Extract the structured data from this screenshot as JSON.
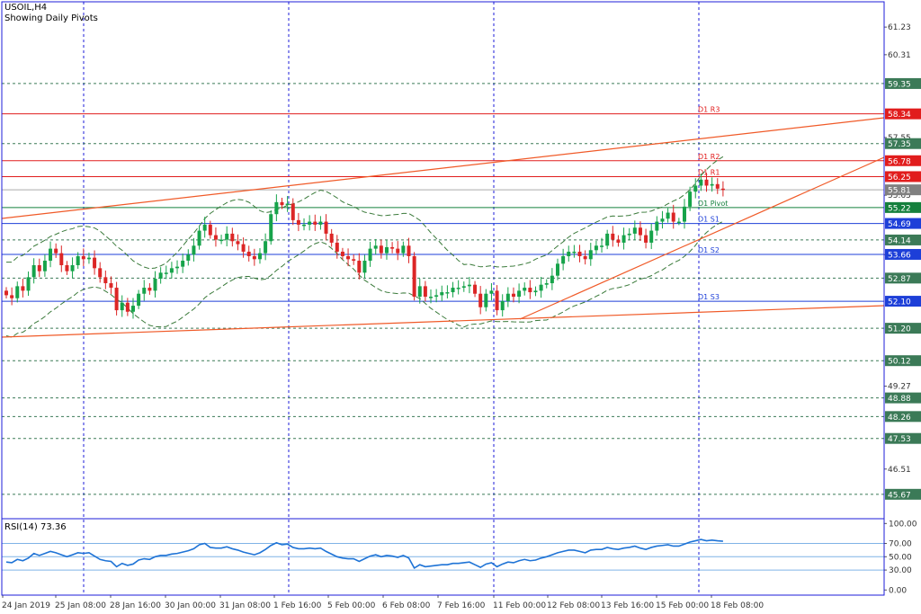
{
  "header": {
    "symbol": "USOIL,H4",
    "subtitle": "Showing Daily Pivots"
  },
  "rsi_panel": {
    "label": "RSI(14) 73.36",
    "ticks": [
      "100.00",
      "70.00",
      "50.00",
      "30.00",
      "0.00"
    ]
  },
  "colors": {
    "bull": "#16a34a",
    "bear": "#dc2626",
    "pivot_resistance": "#e11d1d",
    "pivot": "#15803d",
    "pivot_support": "#1d3fd8",
    "trendline": "#f05a28",
    "bands": "#3a7a3a",
    "rsi": "#1e73d6",
    "frame": "#1c1cd9"
  },
  "chart_data": {
    "type": "candlestick",
    "title": "USOIL,H4",
    "subtitle": "Showing Daily Pivots",
    "ylim": [
      45.0,
      62.0
    ],
    "y_ticks": [
      "61.23",
      "60.31",
      "57.55",
      "55.63",
      "53.65",
      "49.27",
      "46.51"
    ],
    "x_ticks": [
      "24 Jan 2019",
      "25 Jan 08:00",
      "28 Jan 16:00",
      "30 Jan 00:00",
      "31 Jan 08:00",
      "1 Feb 16:00",
      "5 Feb 00:00",
      "6 Feb 08:00",
      "7 Feb 16:00",
      "11 Feb 00:00",
      "12 Feb 08:00",
      "13 Feb 16:00",
      "15 Feb 00:00",
      "18 Feb 08:00"
    ],
    "price_labels": [
      {
        "value": "59.35",
        "color": "#3b7a57"
      },
      {
        "value": "58.34",
        "color": "#e11d1d"
      },
      {
        "value": "57.35",
        "color": "#3b7a57"
      },
      {
        "value": "56.78",
        "color": "#e11d1d"
      },
      {
        "value": "56.25",
        "color": "#e11d1d"
      },
      {
        "value": "55.81",
        "color": "#808080"
      },
      {
        "value": "55.22",
        "color": "#15803d"
      },
      {
        "value": "54.69",
        "color": "#1d3fd8"
      },
      {
        "value": "54.14",
        "color": "#3b7a57"
      },
      {
        "value": "53.66",
        "color": "#1d3fd8"
      },
      {
        "value": "52.87",
        "color": "#3b7a57"
      },
      {
        "value": "52.10",
        "color": "#1d3fd8"
      },
      {
        "value": "51.20",
        "color": "#3b7a57"
      },
      {
        "value": "50.12",
        "color": "#3b7a57"
      },
      {
        "value": "48.88",
        "color": "#3b7a57"
      },
      {
        "value": "48.26",
        "color": "#3b7a57"
      },
      {
        "value": "47.53",
        "color": "#3b7a57"
      },
      {
        "value": "45.67",
        "color": "#3b7a57"
      }
    ],
    "dashed_levels": [
      59.35,
      57.35,
      54.14,
      52.87,
      51.2,
      50.12,
      48.88,
      48.26,
      47.53,
      45.67
    ],
    "pivots": [
      {
        "label": "D1 R3",
        "value": 58.34,
        "kind": "resistance"
      },
      {
        "label": "D1 R2",
        "value": 56.78,
        "kind": "resistance"
      },
      {
        "label": "D1 R1",
        "value": 56.25,
        "kind": "resistance"
      },
      {
        "label": "D1 Pivot",
        "value": 55.22,
        "kind": "pivot"
      },
      {
        "label": "D1 S1",
        "value": 54.69,
        "kind": "support"
      },
      {
        "label": "D1 S2",
        "value": 53.66,
        "kind": "support"
      },
      {
        "label": "D1 S3",
        "value": 52.1,
        "kind": "support"
      }
    ],
    "current_price": 55.81,
    "candles_close": [
      52.3,
      52.2,
      52.6,
      52.45,
      52.9,
      53.3,
      53.1,
      53.45,
      53.85,
      53.7,
      53.3,
      53.1,
      53.3,
      53.6,
      53.5,
      53.55,
      53.2,
      52.9,
      52.7,
      52.55,
      51.8,
      52.05,
      51.75,
      51.95,
      52.35,
      52.55,
      52.45,
      52.85,
      53.05,
      53.05,
      53.2,
      53.25,
      53.45,
      53.65,
      53.95,
      54.45,
      54.65,
      54.3,
      54.15,
      54.15,
      54.35,
      54.1,
      54.0,
      53.75,
      53.6,
      53.5,
      53.7,
      54.1,
      55.0,
      55.4,
      55.3,
      55.35,
      54.8,
      54.65,
      54.65,
      54.75,
      54.65,
      54.75,
      54.35,
      54.05,
      53.75,
      53.6,
      53.5,
      53.45,
      53.05,
      53.45,
      53.85,
      53.95,
      53.7,
      53.9,
      53.85,
      53.7,
      53.95,
      53.6,
      52.25,
      52.6,
      52.25,
      52.25,
      52.3,
      52.4,
      52.4,
      52.55,
      52.55,
      52.6,
      52.65,
      52.35,
      51.9,
      52.35,
      52.45,
      51.8,
      52.1,
      52.35,
      52.25,
      52.45,
      52.55,
      52.4,
      52.45,
      52.65,
      52.7,
      52.95,
      53.35,
      53.6,
      53.75,
      53.75,
      53.6,
      53.5,
      53.8,
      53.95,
      53.95,
      54.35,
      54.15,
      54.05,
      54.3,
      54.35,
      54.55,
      54.3,
      54.05,
      54.45,
      54.75,
      54.85,
      55.05,
      54.75,
      54.75,
      55.25,
      55.75,
      55.95,
      56.15,
      55.95,
      56.0,
      55.85,
      55.81
    ],
    "rsi": {
      "name": "RSI(14)",
      "value": 73.36,
      "ylim": [
        0,
        100
      ],
      "levels": [
        70,
        50,
        30
      ],
      "values": [
        42,
        41,
        46,
        44,
        48,
        55,
        52,
        55,
        58,
        56,
        53,
        50,
        53,
        56,
        55,
        56,
        51,
        46,
        44,
        43,
        35,
        40,
        37,
        39,
        45,
        47,
        46,
        50,
        52,
        52,
        54,
        55,
        57,
        59,
        62,
        68,
        70,
        64,
        63,
        63,
        65,
        62,
        60,
        57,
        55,
        53,
        56,
        61,
        67,
        71,
        68,
        69,
        64,
        62,
        62,
        63,
        62,
        63,
        58,
        54,
        50,
        48,
        47,
        47,
        43,
        47,
        51,
        53,
        50,
        52,
        51,
        49,
        52,
        48,
        33,
        38,
        35,
        36,
        37,
        38,
        38,
        40,
        40,
        41,
        42,
        38,
        34,
        39,
        41,
        35,
        39,
        42,
        41,
        44,
        46,
        44,
        45,
        48,
        50,
        53,
        56,
        58,
        60,
        60,
        58,
        56,
        60,
        61,
        61,
        64,
        62,
        61,
        63,
        64,
        66,
        63,
        61,
        64,
        66,
        67,
        68,
        66,
        66,
        69,
        72,
        74,
        76,
        74,
        75,
        74,
        73.36
      ]
    }
  }
}
